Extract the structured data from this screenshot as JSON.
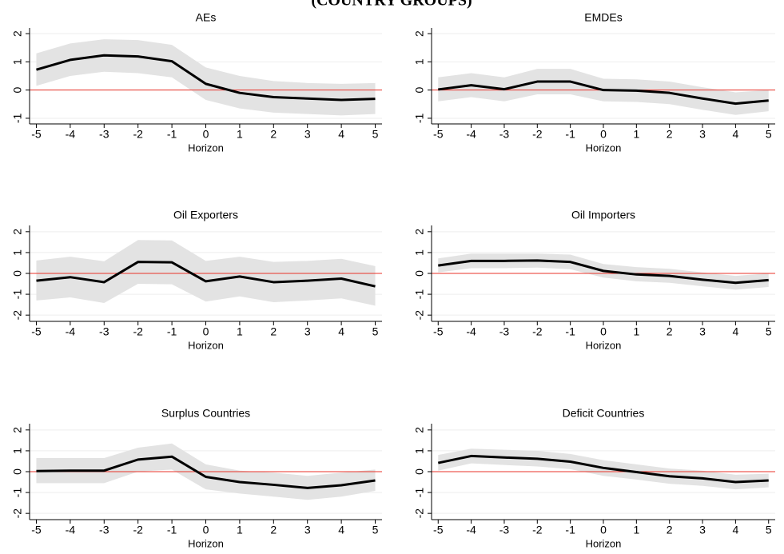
{
  "header": {
    "title": "(COUNTRY GROUPS)"
  },
  "chart_data": [
    {
      "type": "line",
      "title": "AEs",
      "x_label": "Horizon",
      "x": [
        -5,
        -4,
        -3,
        -2,
        -1,
        0,
        1,
        2,
        3,
        4,
        5
      ],
      "values": [
        0.72,
        1.07,
        1.23,
        1.19,
        1.02,
        0.22,
        -0.1,
        -0.25,
        -0.3,
        -0.35,
        -0.31
      ],
      "upper": [
        1.3,
        1.65,
        1.8,
        1.77,
        1.6,
        0.8,
        0.5,
        0.32,
        0.25,
        0.22,
        0.25
      ],
      "lower": [
        0.15,
        0.5,
        0.65,
        0.6,
        0.45,
        -0.35,
        -0.65,
        -0.8,
        -0.85,
        -0.9,
        -0.85
      ],
      "xlim": [
        -5.2,
        5.2
      ],
      "xticks": [
        -5,
        -4,
        -3,
        -2,
        -1,
        0,
        1,
        2,
        3,
        4,
        5
      ],
      "ylim": [
        -1.2,
        2.2
      ],
      "yticks": [
        -1,
        0,
        1,
        2
      ],
      "color": "#000000",
      "band_color": "#e3e3e3",
      "hline": 0,
      "hline_color": "#e8332a",
      "grid": true
    },
    {
      "type": "line",
      "title": "EMDEs",
      "x_label": "Horizon",
      "x": [
        -5,
        -4,
        -3,
        -2,
        -1,
        0,
        1,
        2,
        3,
        4,
        5
      ],
      "values": [
        0.02,
        0.17,
        0.03,
        0.3,
        0.3,
        0.0,
        -0.02,
        -0.1,
        -0.3,
        -0.48,
        -0.37
      ],
      "upper": [
        0.45,
        0.6,
        0.45,
        0.75,
        0.75,
        0.4,
        0.38,
        0.3,
        0.1,
        -0.08,
        0.0
      ],
      "lower": [
        -0.4,
        -0.25,
        -0.4,
        -0.15,
        -0.15,
        -0.4,
        -0.42,
        -0.5,
        -0.7,
        -0.88,
        -0.75
      ],
      "xlim": [
        -5.2,
        5.2
      ],
      "xticks": [
        -5,
        -4,
        -3,
        -2,
        -1,
        0,
        1,
        2,
        3,
        4,
        5
      ],
      "ylim": [
        -1.2,
        2.2
      ],
      "yticks": [
        -1,
        0,
        1,
        2
      ],
      "color": "#000000",
      "band_color": "#e3e3e3",
      "hline": 0,
      "hline_color": "#e8332a",
      "grid": true
    },
    {
      "type": "line",
      "title": "Oil Exporters",
      "x_label": "Horizon",
      "x": [
        -5,
        -4,
        -3,
        -2,
        -1,
        0,
        1,
        2,
        3,
        4,
        5
      ],
      "values": [
        -0.35,
        -0.18,
        -0.42,
        0.55,
        0.53,
        -0.38,
        -0.15,
        -0.42,
        -0.35,
        -0.25,
        -0.62
      ],
      "upper": [
        0.62,
        0.8,
        0.58,
        1.6,
        1.58,
        0.6,
        0.8,
        0.55,
        0.6,
        0.7,
        0.35
      ],
      "lower": [
        -1.3,
        -1.15,
        -1.42,
        -0.5,
        -0.52,
        -1.35,
        -1.1,
        -1.38,
        -1.3,
        -1.2,
        -1.55
      ],
      "xlim": [
        -5.2,
        5.2
      ],
      "xticks": [
        -5,
        -4,
        -3,
        -2,
        -1,
        0,
        1,
        2,
        3,
        4,
        5
      ],
      "ylim": [
        -2.3,
        2.3
      ],
      "yticks": [
        -2,
        -1,
        0,
        1,
        2
      ],
      "color": "#000000",
      "band_color": "#e3e3e3",
      "hline": 0,
      "hline_color": "#e8332a",
      "grid": true
    },
    {
      "type": "line",
      "title": "Oil Importers",
      "x_label": "Horizon",
      "x": [
        -5,
        -4,
        -3,
        -2,
        -1,
        0,
        1,
        2,
        3,
        4,
        5
      ],
      "values": [
        0.38,
        0.6,
        0.6,
        0.62,
        0.55,
        0.12,
        -0.05,
        -0.12,
        -0.3,
        -0.45,
        -0.32
      ],
      "upper": [
        0.72,
        0.95,
        0.95,
        0.95,
        0.9,
        0.45,
        0.3,
        0.22,
        0.05,
        -0.12,
        0.0
      ],
      "lower": [
        0.05,
        0.25,
        0.25,
        0.28,
        0.2,
        -0.2,
        -0.38,
        -0.45,
        -0.62,
        -0.78,
        -0.65
      ],
      "xlim": [
        -5.2,
        5.2
      ],
      "xticks": [
        -5,
        -4,
        -3,
        -2,
        -1,
        0,
        1,
        2,
        3,
        4,
        5
      ],
      "ylim": [
        -2.3,
        2.3
      ],
      "yticks": [
        -2,
        -1,
        0,
        1,
        2
      ],
      "color": "#000000",
      "band_color": "#e3e3e3",
      "hline": 0,
      "hline_color": "#e8332a",
      "grid": true
    },
    {
      "type": "line",
      "title": "Surplus Countries",
      "x_label": "Horizon",
      "x": [
        -5,
        -4,
        -3,
        -2,
        -1,
        0,
        1,
        2,
        3,
        4,
        5
      ],
      "values": [
        0.03,
        0.05,
        0.05,
        0.58,
        0.72,
        -0.25,
        -0.5,
        -0.63,
        -0.78,
        -0.65,
        -0.42
      ],
      "upper": [
        0.65,
        0.65,
        0.65,
        1.15,
        1.35,
        0.35,
        0.05,
        -0.05,
        -0.2,
        -0.05,
        0.1
      ],
      "lower": [
        -0.55,
        -0.55,
        -0.55,
        0.0,
        0.1,
        -0.85,
        -1.05,
        -1.2,
        -1.35,
        -1.2,
        -0.92
      ],
      "xlim": [
        -5.2,
        5.2
      ],
      "xticks": [
        -5,
        -4,
        -3,
        -2,
        -1,
        0,
        1,
        2,
        3,
        4,
        5
      ],
      "ylim": [
        -2.3,
        2.3
      ],
      "yticks": [
        -2,
        -1,
        0,
        1,
        2
      ],
      "color": "#000000",
      "band_color": "#e3e3e3",
      "hline": 0,
      "hline_color": "#e8332a",
      "grid": true
    },
    {
      "type": "line",
      "title": "Deficit Countries",
      "x_label": "Horizon",
      "x": [
        -5,
        -4,
        -3,
        -2,
        -1,
        0,
        1,
        2,
        3,
        4,
        5
      ],
      "values": [
        0.42,
        0.75,
        0.68,
        0.62,
        0.48,
        0.18,
        -0.02,
        -0.22,
        -0.32,
        -0.5,
        -0.42
      ],
      "upper": [
        0.8,
        1.1,
        1.05,
        1.0,
        0.85,
        0.55,
        0.35,
        0.15,
        0.05,
        -0.15,
        -0.1
      ],
      "lower": [
        0.05,
        0.4,
        0.32,
        0.25,
        0.12,
        -0.2,
        -0.38,
        -0.58,
        -0.68,
        -0.85,
        -0.75
      ],
      "xlim": [
        -5.2,
        5.2
      ],
      "xticks": [
        -5,
        -4,
        -3,
        -2,
        -1,
        0,
        1,
        2,
        3,
        4,
        5
      ],
      "ylim": [
        -2.3,
        2.3
      ],
      "yticks": [
        -2,
        -1,
        0,
        1,
        2
      ],
      "color": "#000000",
      "band_color": "#e3e3e3",
      "hline": 0,
      "hline_color": "#e8332a",
      "grid": true
    }
  ]
}
